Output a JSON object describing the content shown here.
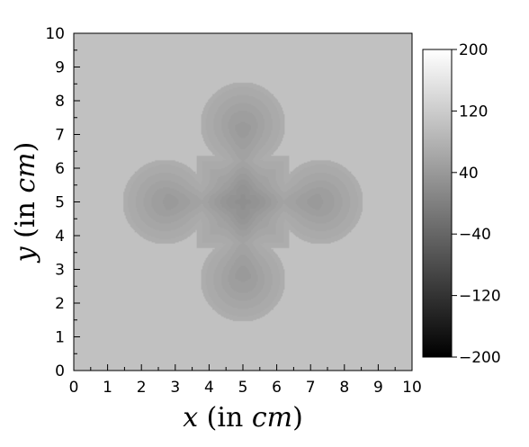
{
  "chart_data": {
    "type": "heatmap",
    "colormap": "grayscale (black to white)",
    "xlabel": "x (in cm)",
    "ylabel": "y (in cm)",
    "xlabel_parts": [
      {
        "t": "x",
        "it": true
      },
      {
        "t": " (in ",
        "it": false
      },
      {
        "t": "cm",
        "it": true
      },
      {
        "t": ")",
        "it": false
      }
    ],
    "ylabel_parts": [
      {
        "t": "y",
        "it": true
      },
      {
        "t": " (in ",
        "it": false
      },
      {
        "t": "cm",
        "it": true
      },
      {
        "t": ")",
        "it": false
      }
    ],
    "xlim": [
      0,
      10
    ],
    "ylim": [
      0,
      10
    ],
    "x_ticks": [
      0,
      1,
      2,
      3,
      4,
      5,
      6,
      7,
      8,
      9,
      10
    ],
    "y_ticks": [
      0,
      1,
      2,
      3,
      4,
      5,
      6,
      7,
      8,
      9,
      10
    ],
    "colorbar": {
      "range": [
        -200,
        200
      ],
      "ticks": [
        200,
        120,
        40,
        -40,
        -120,
        -200
      ],
      "tick_labels": [
        "200",
        "120",
        "40",
        "−40",
        "−120",
        "−200"
      ]
    },
    "field": {
      "description": "four-lobed cross shape centered at (5, 5)",
      "background_value": 103,
      "inner_value": 30,
      "center": [
        5,
        5
      ],
      "lobe_centers": [
        [
          5,
          7.3
        ],
        [
          5,
          2.7
        ],
        [
          2.7,
          5
        ],
        [
          7.3,
          5
        ]
      ],
      "lobe_radius": 1.25
    }
  }
}
